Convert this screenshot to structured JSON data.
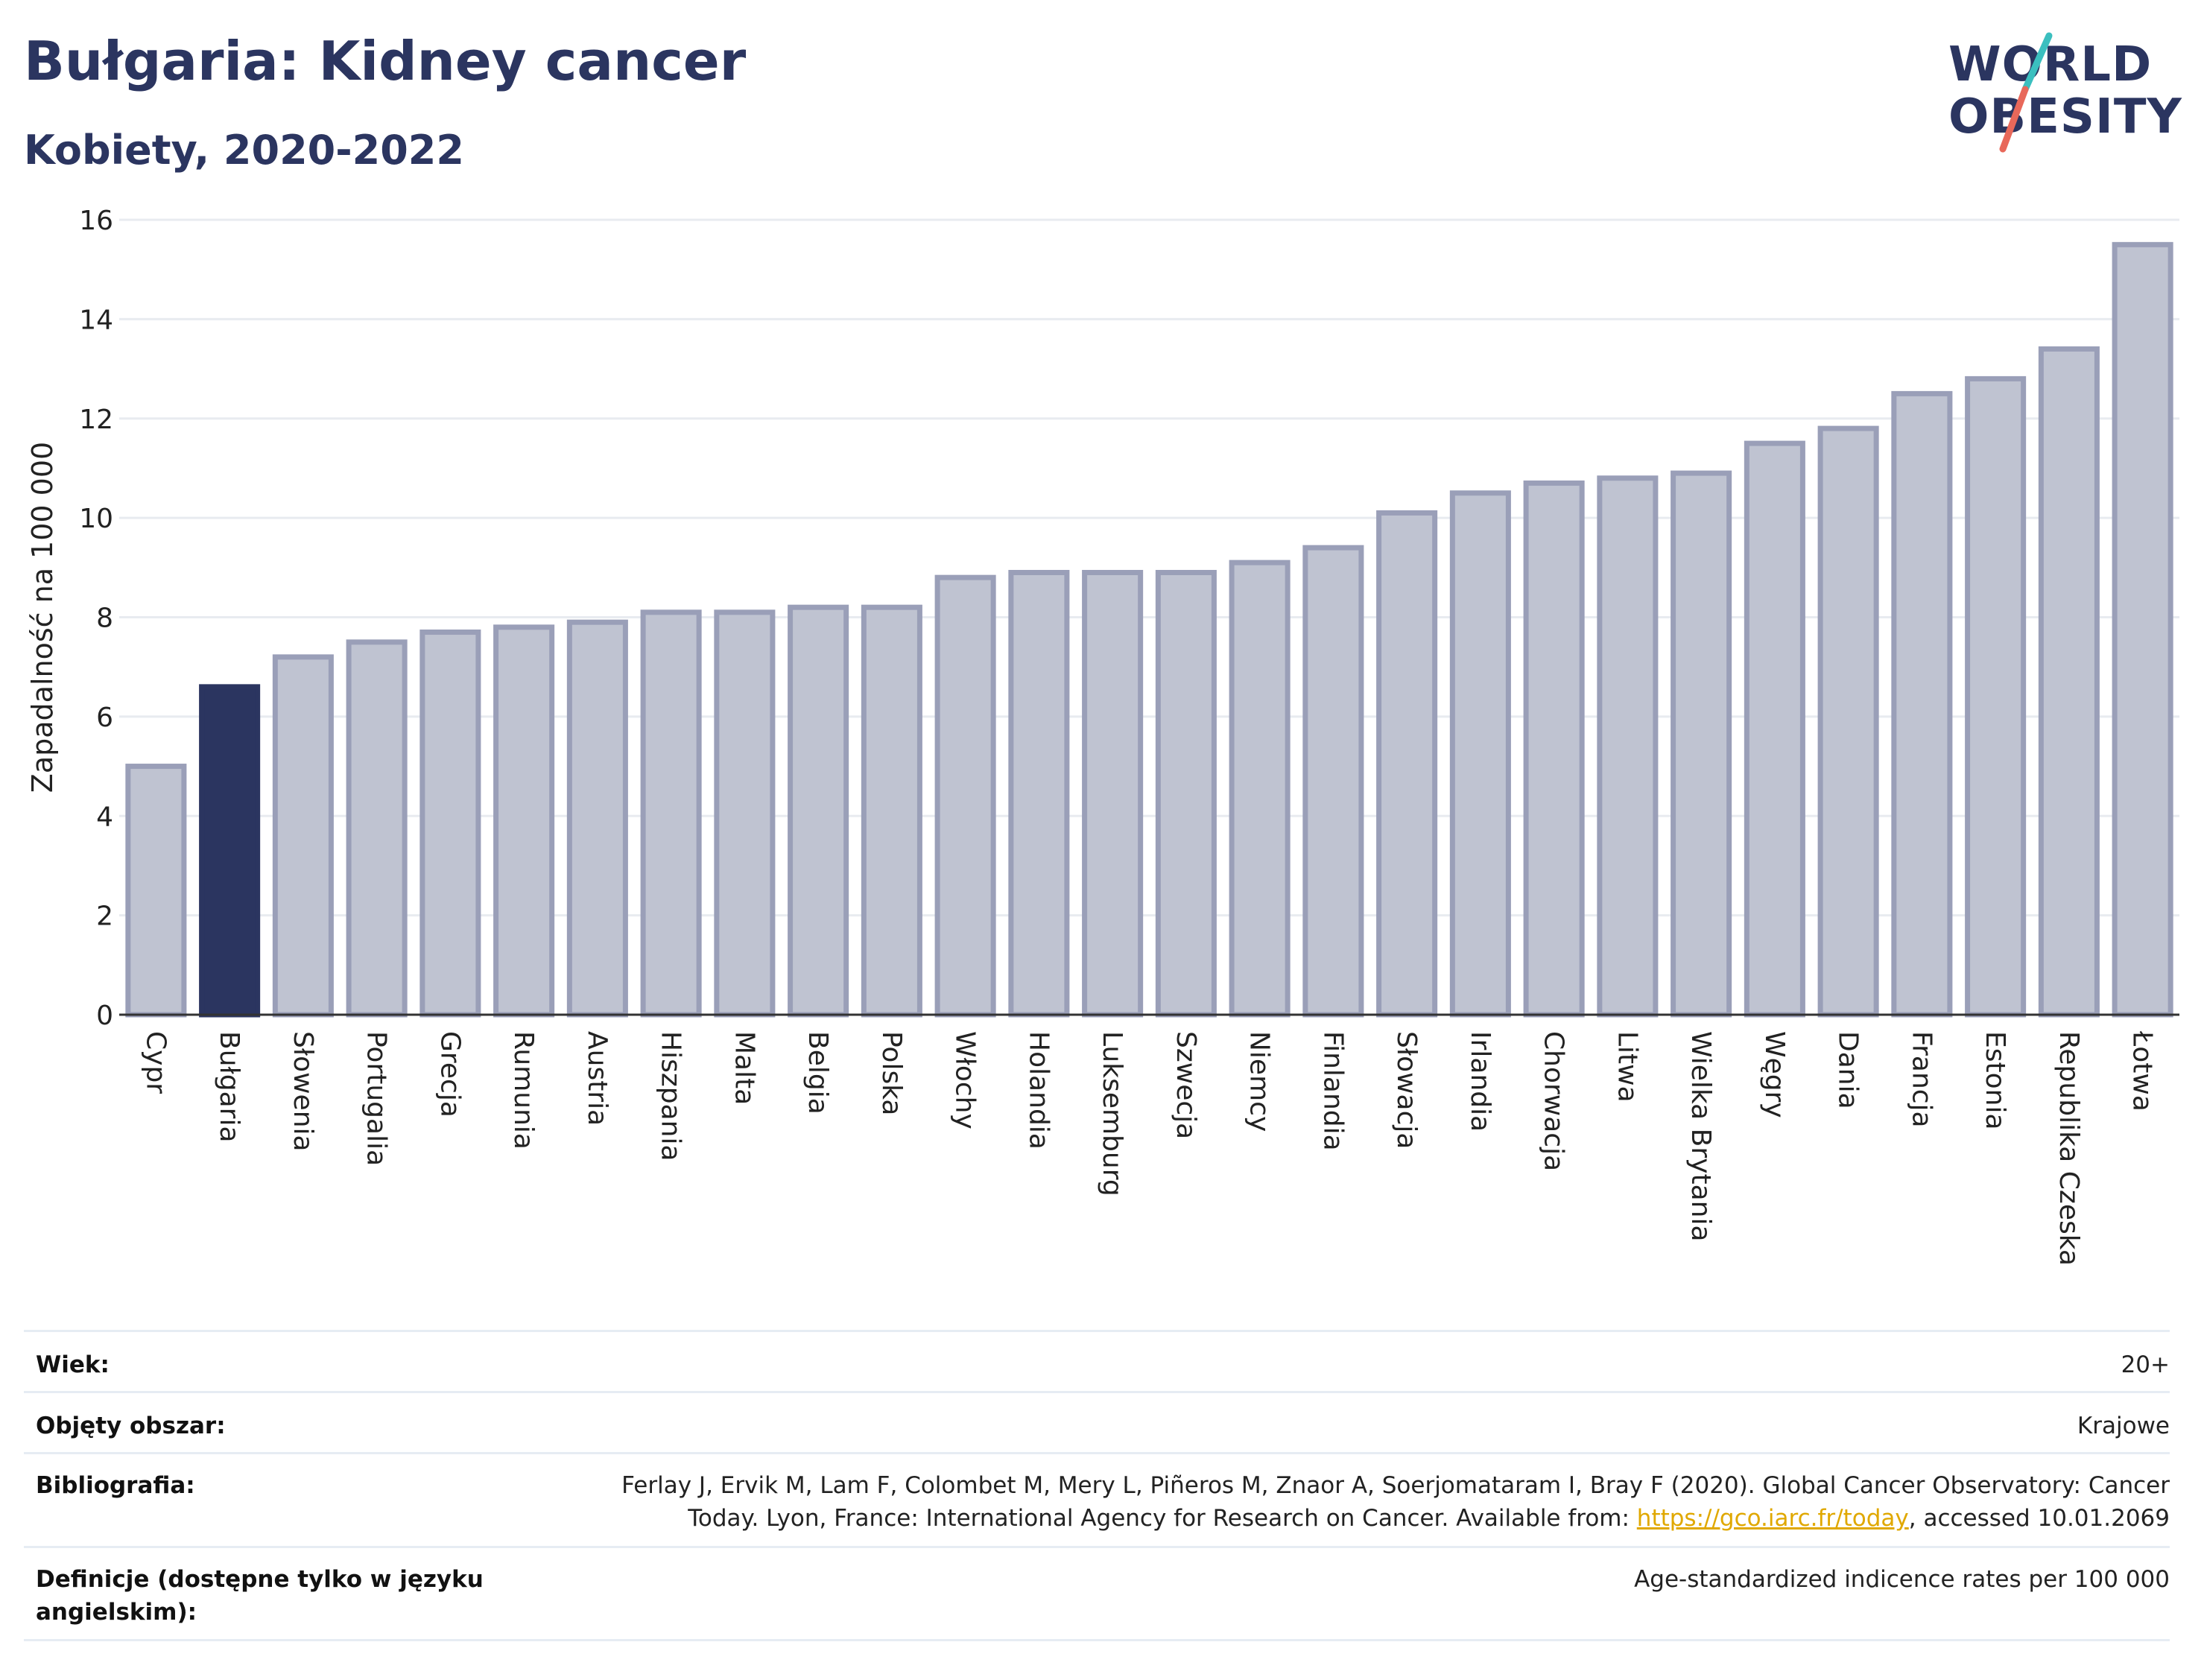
{
  "title": "Bułgaria: Kidney cancer",
  "subtitle": "Kobiety, 2020-2022",
  "logo": {
    "line1": "WORLD",
    "line2": "OBESITY"
  },
  "colors": {
    "highlight": "#2b3560",
    "bar_fill": "#bfc3d1",
    "bar_stroke": "#9a9fb8",
    "grid": "#e8ebf0",
    "accent_teal": "#3bbfbf",
    "accent_red": "#e8685a"
  },
  "chart_data": {
    "type": "bar",
    "ylabel": "Zapadalność na 100 000",
    "xlabel": "",
    "ylim": [
      0,
      16
    ],
    "yticks": [
      0,
      2,
      4,
      6,
      8,
      10,
      12,
      14,
      16
    ],
    "highlight": "Bułgaria",
    "grid": true,
    "categories": [
      "Cypr",
      "Bułgaria",
      "Słowenia",
      "Portugalia",
      "Grecja",
      "Rumunia",
      "Austria",
      "Hiszpania",
      "Malta",
      "Belgia",
      "Polska",
      "Włochy",
      "Holandia",
      "Luksemburg",
      "Szwecja",
      "Niemcy",
      "Finlandia",
      "Słowacja",
      "Irlandia",
      "Chorwacja",
      "Litwa",
      "Wielka Brytania",
      "Węgry",
      "Dania",
      "Francja",
      "Estonia",
      "Republika Czeska",
      "Łotwa"
    ],
    "values": [
      5.0,
      6.6,
      7.2,
      7.5,
      7.7,
      7.8,
      7.9,
      8.1,
      8.1,
      8.2,
      8.2,
      8.8,
      8.9,
      8.9,
      8.9,
      9.1,
      9.4,
      10.1,
      10.5,
      10.7,
      10.8,
      10.9,
      11.5,
      11.8,
      12.5,
      12.8,
      13.4,
      15.5
    ]
  },
  "meta": {
    "wiek_label": "Wiek:",
    "wiek_value": "20+",
    "obszar_label": "Objęty obszar:",
    "obszar_value": "Krajowe",
    "bib_label": "Bibliografia:",
    "bib_line1": "Ferlay J, Ervik M, Lam F, Colombet M, Mery L, Piñeros M, Znaor A, Soerjomataram I, Bray F (2020). Global Cancer Observatory: Cancer",
    "bib_line2_pre": "Today. Lyon, France: International Agency for Research on Cancer. Available from: ",
    "bib_link": "https://gco.iarc.fr/today",
    "bib_line2_post": ", accessed 10.01.2069",
    "def_label": "Definicje (dostępne tylko w języku angielskim):",
    "def_value": "Age-standardized indicence rates per 100 000"
  }
}
